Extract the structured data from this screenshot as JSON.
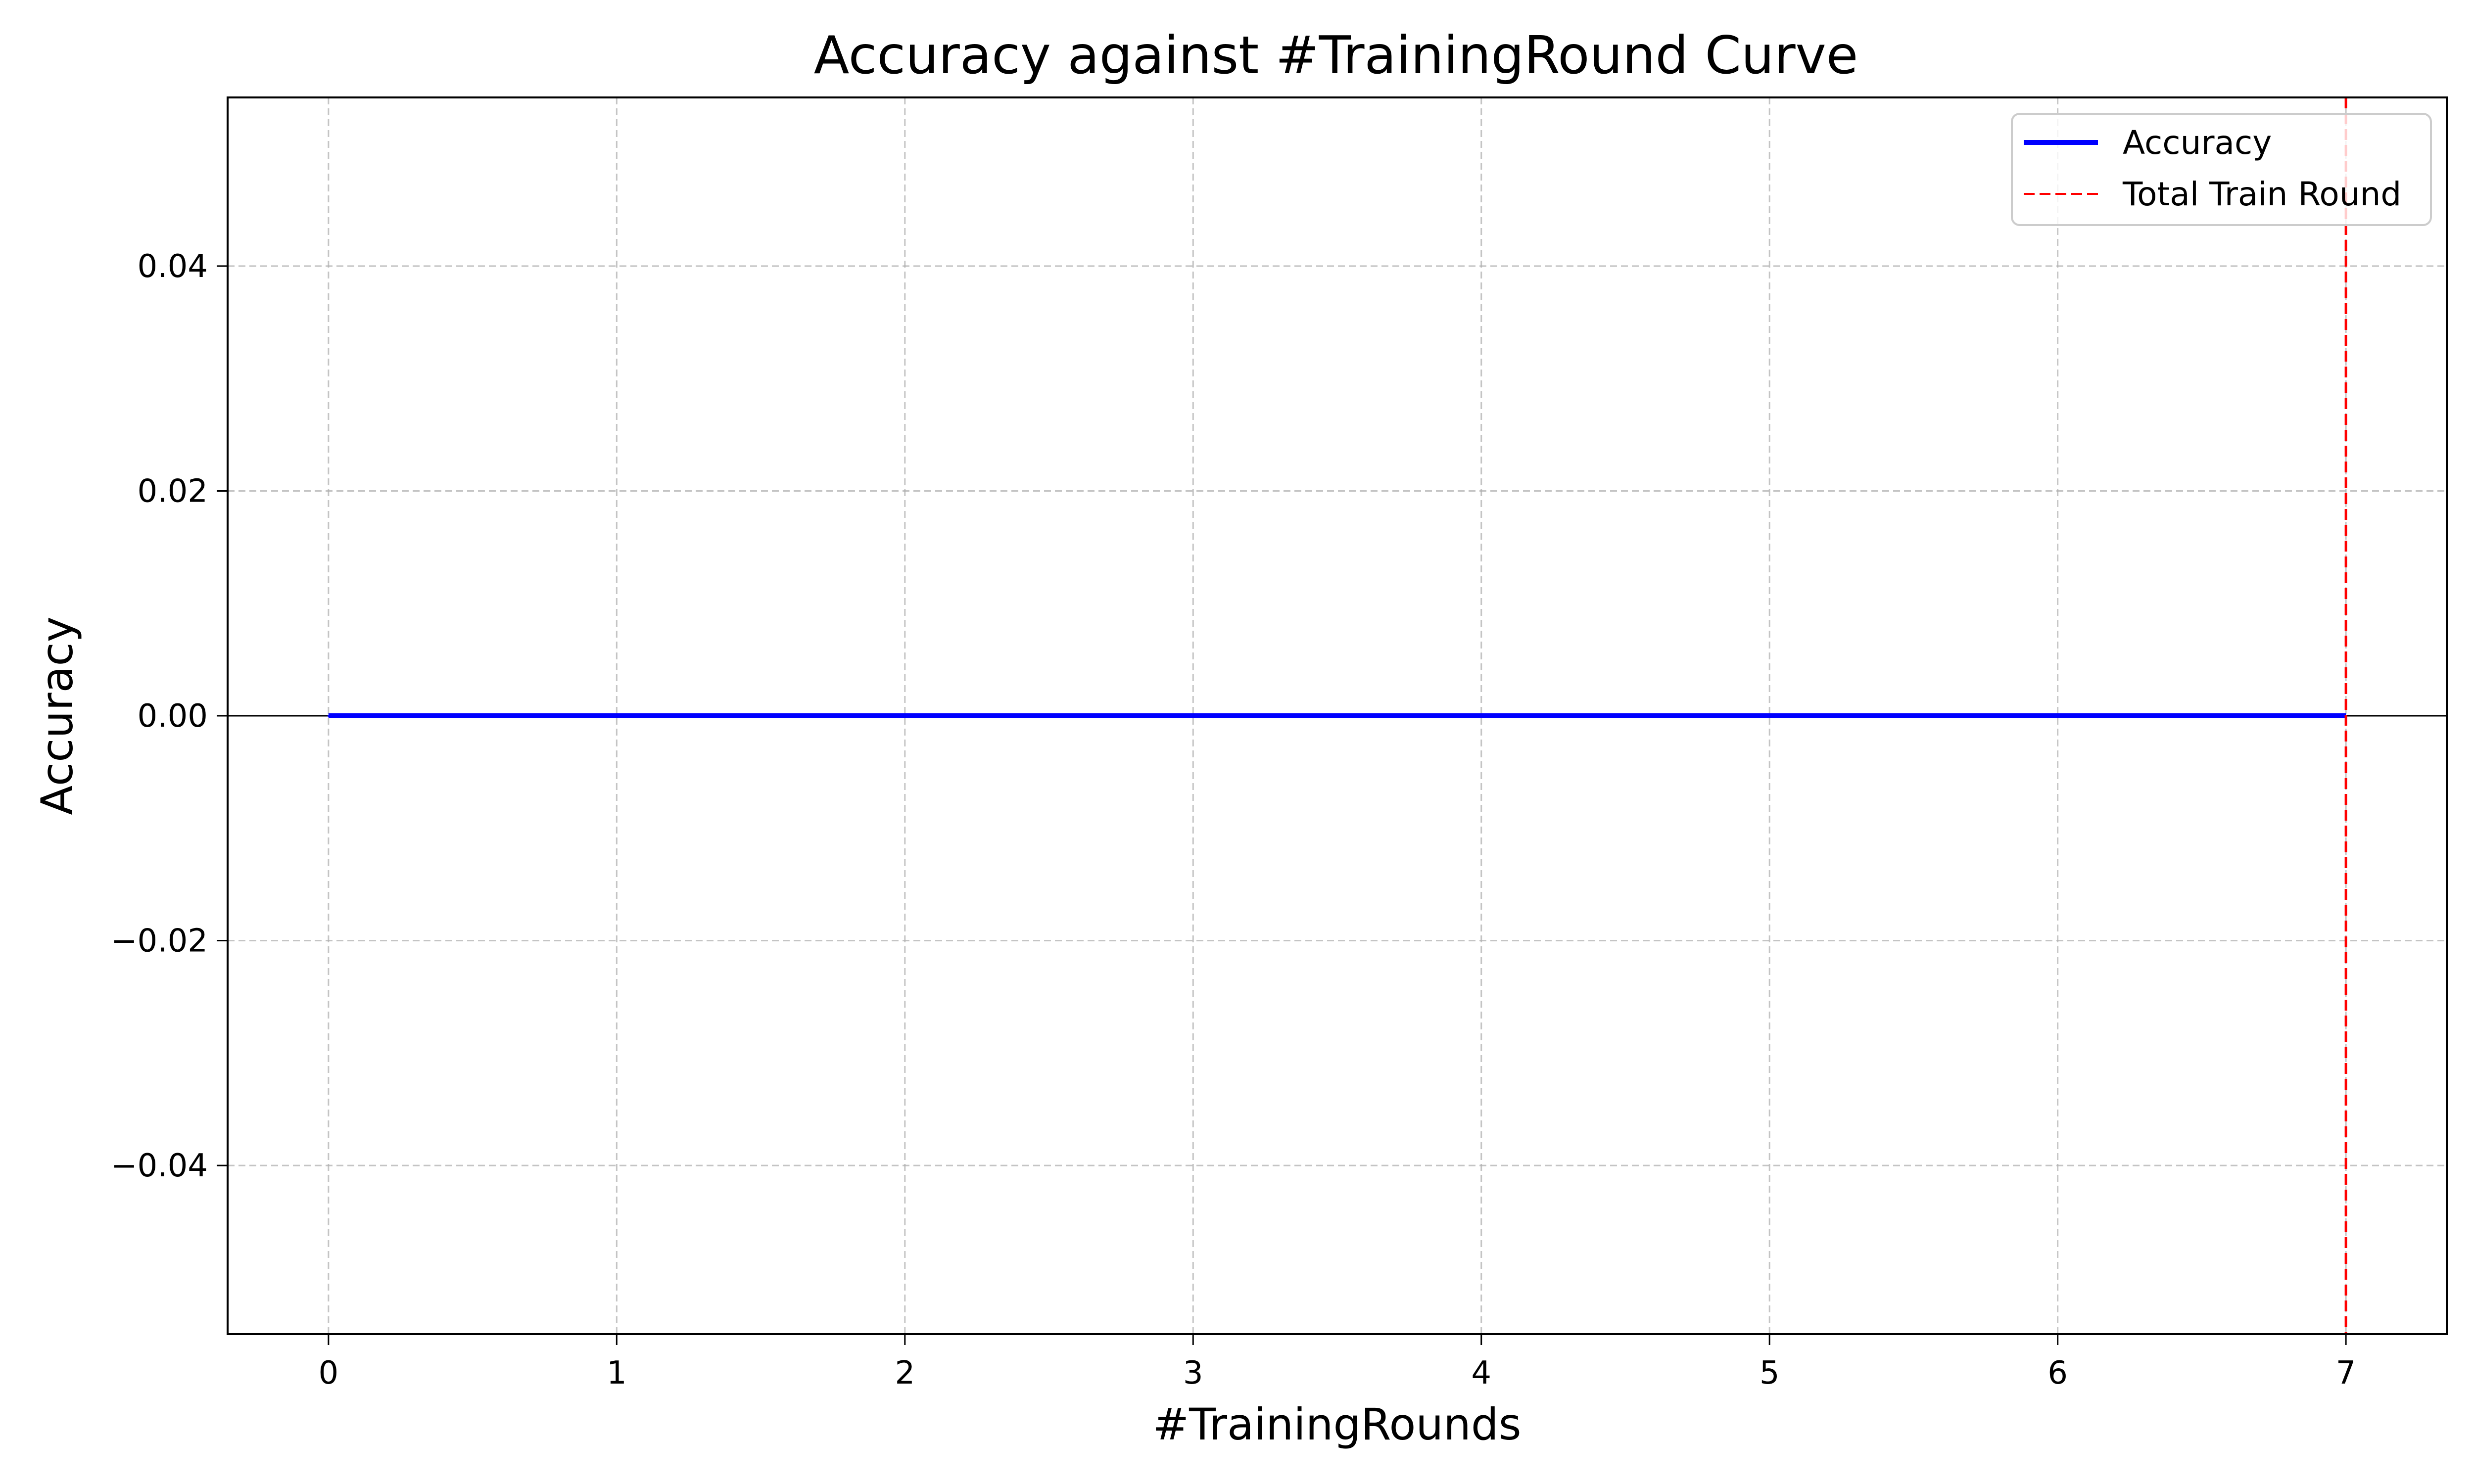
{
  "chart_data": {
    "type": "line",
    "title": "Accuracy against #TrainingRound Curve",
    "xlabel": "#TrainingRounds",
    "ylabel": "Accuracy",
    "xlim": [
      -0.35,
      7.35
    ],
    "ylim": [
      -0.055,
      0.055
    ],
    "xticks": [
      0,
      1,
      2,
      3,
      4,
      5,
      6,
      7
    ],
    "xtick_labels": [
      "0",
      "1",
      "2",
      "3",
      "4",
      "5",
      "6",
      "7"
    ],
    "yticks": [
      0.04,
      0.02,
      0.0,
      -0.02,
      -0.04
    ],
    "ytick_labels": [
      "0.04",
      "0.02",
      "0.00",
      "−0.02",
      "−0.04"
    ],
    "grid": true,
    "legend_position": "top-right",
    "reference_hline": {
      "y": 0,
      "color": "#000000"
    },
    "series": [
      {
        "name": "Accuracy",
        "color": "#0000ff",
        "style": "solid",
        "x": [
          0,
          1,
          2,
          3,
          4,
          5,
          6,
          7
        ],
        "y": [
          0,
          0,
          0,
          0,
          0,
          0,
          0,
          0
        ]
      }
    ],
    "vlines": [
      {
        "name": "Total Train Round",
        "x": 7,
        "color": "#ff0000",
        "style": "dashed"
      }
    ]
  }
}
